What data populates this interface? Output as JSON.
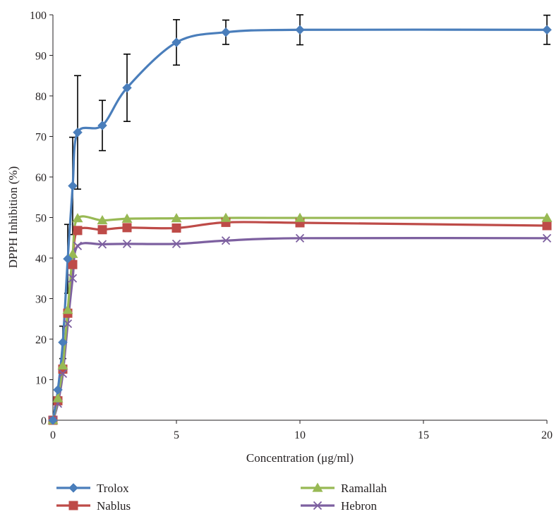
{
  "chart_data": {
    "type": "line",
    "xlabel": "Concentration (μg/ml)",
    "ylabel": "DPPH Inhibition (%)",
    "xlim": [
      0,
      20
    ],
    "ylim": [
      0,
      100
    ],
    "x_ticks": [
      0,
      5,
      10,
      15,
      20
    ],
    "y_ticks": [
      0,
      10,
      20,
      30,
      40,
      50,
      60,
      70,
      80,
      90,
      100
    ],
    "grid": false,
    "legend_position": "bottom",
    "series": [
      {
        "name": "Trolox",
        "color": "#4a7ebb",
        "marker": "diamond",
        "x": [
          0,
          0.2,
          0.4,
          0.6,
          0.8,
          1,
          2,
          3,
          5,
          7,
          10,
          20
        ],
        "y": [
          0,
          7.5,
          19.2,
          39.8,
          57.8,
          71,
          72.7,
          82,
          93.2,
          95.7,
          96.3,
          96.3
        ],
        "error": [
          0,
          0,
          4,
          8.5,
          12,
          14,
          6.2,
          8.3,
          5.6,
          3,
          3.7,
          3.6
        ]
      },
      {
        "name": "Nablus",
        "color": "#be4b48",
        "marker": "square",
        "x": [
          0,
          0.2,
          0.4,
          0.6,
          0.8,
          1,
          2,
          3,
          5,
          7,
          10,
          20
        ],
        "y": [
          0,
          4.8,
          12.6,
          26.4,
          38.4,
          46.8,
          47,
          47.5,
          47.4,
          48.8,
          48.7,
          48
        ],
        "error": [
          0,
          0,
          0,
          0,
          0,
          0,
          0,
          0,
          0,
          0,
          0,
          0
        ]
      },
      {
        "name": "Ramallah",
        "color": "#98b954",
        "marker": "triangle",
        "x": [
          0,
          0.2,
          0.4,
          0.6,
          0.8,
          1,
          2,
          3,
          5,
          7,
          10,
          20
        ],
        "y": [
          0,
          5.4,
          13.5,
          27.2,
          41,
          49.8,
          49.3,
          49.7,
          49.8,
          49.9,
          49.9,
          49.9
        ],
        "error": [
          0,
          0,
          0,
          0,
          0,
          0,
          0,
          0,
          0,
          0,
          0,
          0
        ]
      },
      {
        "name": "Hebron",
        "color": "#7d60a0",
        "marker": "x",
        "x": [
          0,
          0.2,
          0.4,
          0.6,
          0.8,
          1,
          2,
          3,
          5,
          7,
          10,
          20
        ],
        "y": [
          0,
          4.1,
          11.5,
          23.8,
          35,
          43,
          43.4,
          43.5,
          43.5,
          44.3,
          44.9,
          44.9
        ],
        "error": [
          0,
          0,
          0,
          0,
          0,
          0,
          0,
          0,
          0,
          0,
          0,
          0
        ]
      }
    ]
  }
}
